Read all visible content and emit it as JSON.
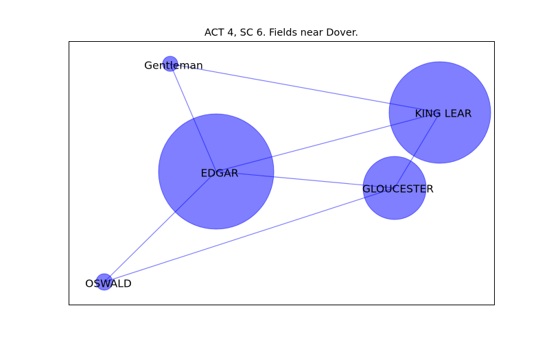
{
  "title": "ACT 4, SC 6. Fields near Dover.",
  "colors": {
    "node_fill": "#0000ff",
    "node_opacity": 0.5,
    "edge_stroke": "#0000ff",
    "edge_opacity": 0.5,
    "frame": "#000000"
  },
  "nodes": [
    {
      "id": "gentleman",
      "label": "Gentleman"
    },
    {
      "id": "king-lear",
      "label": "KING LEAR"
    },
    {
      "id": "edgar",
      "label": "EDGAR"
    },
    {
      "id": "gloucester",
      "label": "GLOUCESTER"
    },
    {
      "id": "oswald",
      "label": "OSWALD"
    }
  ],
  "edges": [
    {
      "from": "gentleman",
      "to": "king-lear"
    },
    {
      "from": "gentleman",
      "to": "edgar"
    },
    {
      "from": "edgar",
      "to": "king-lear"
    },
    {
      "from": "edgar",
      "to": "gloucester"
    },
    {
      "from": "edgar",
      "to": "oswald"
    },
    {
      "from": "gloucester",
      "to": "king-lear"
    },
    {
      "from": "gloucester",
      "to": "oswald"
    }
  ]
}
